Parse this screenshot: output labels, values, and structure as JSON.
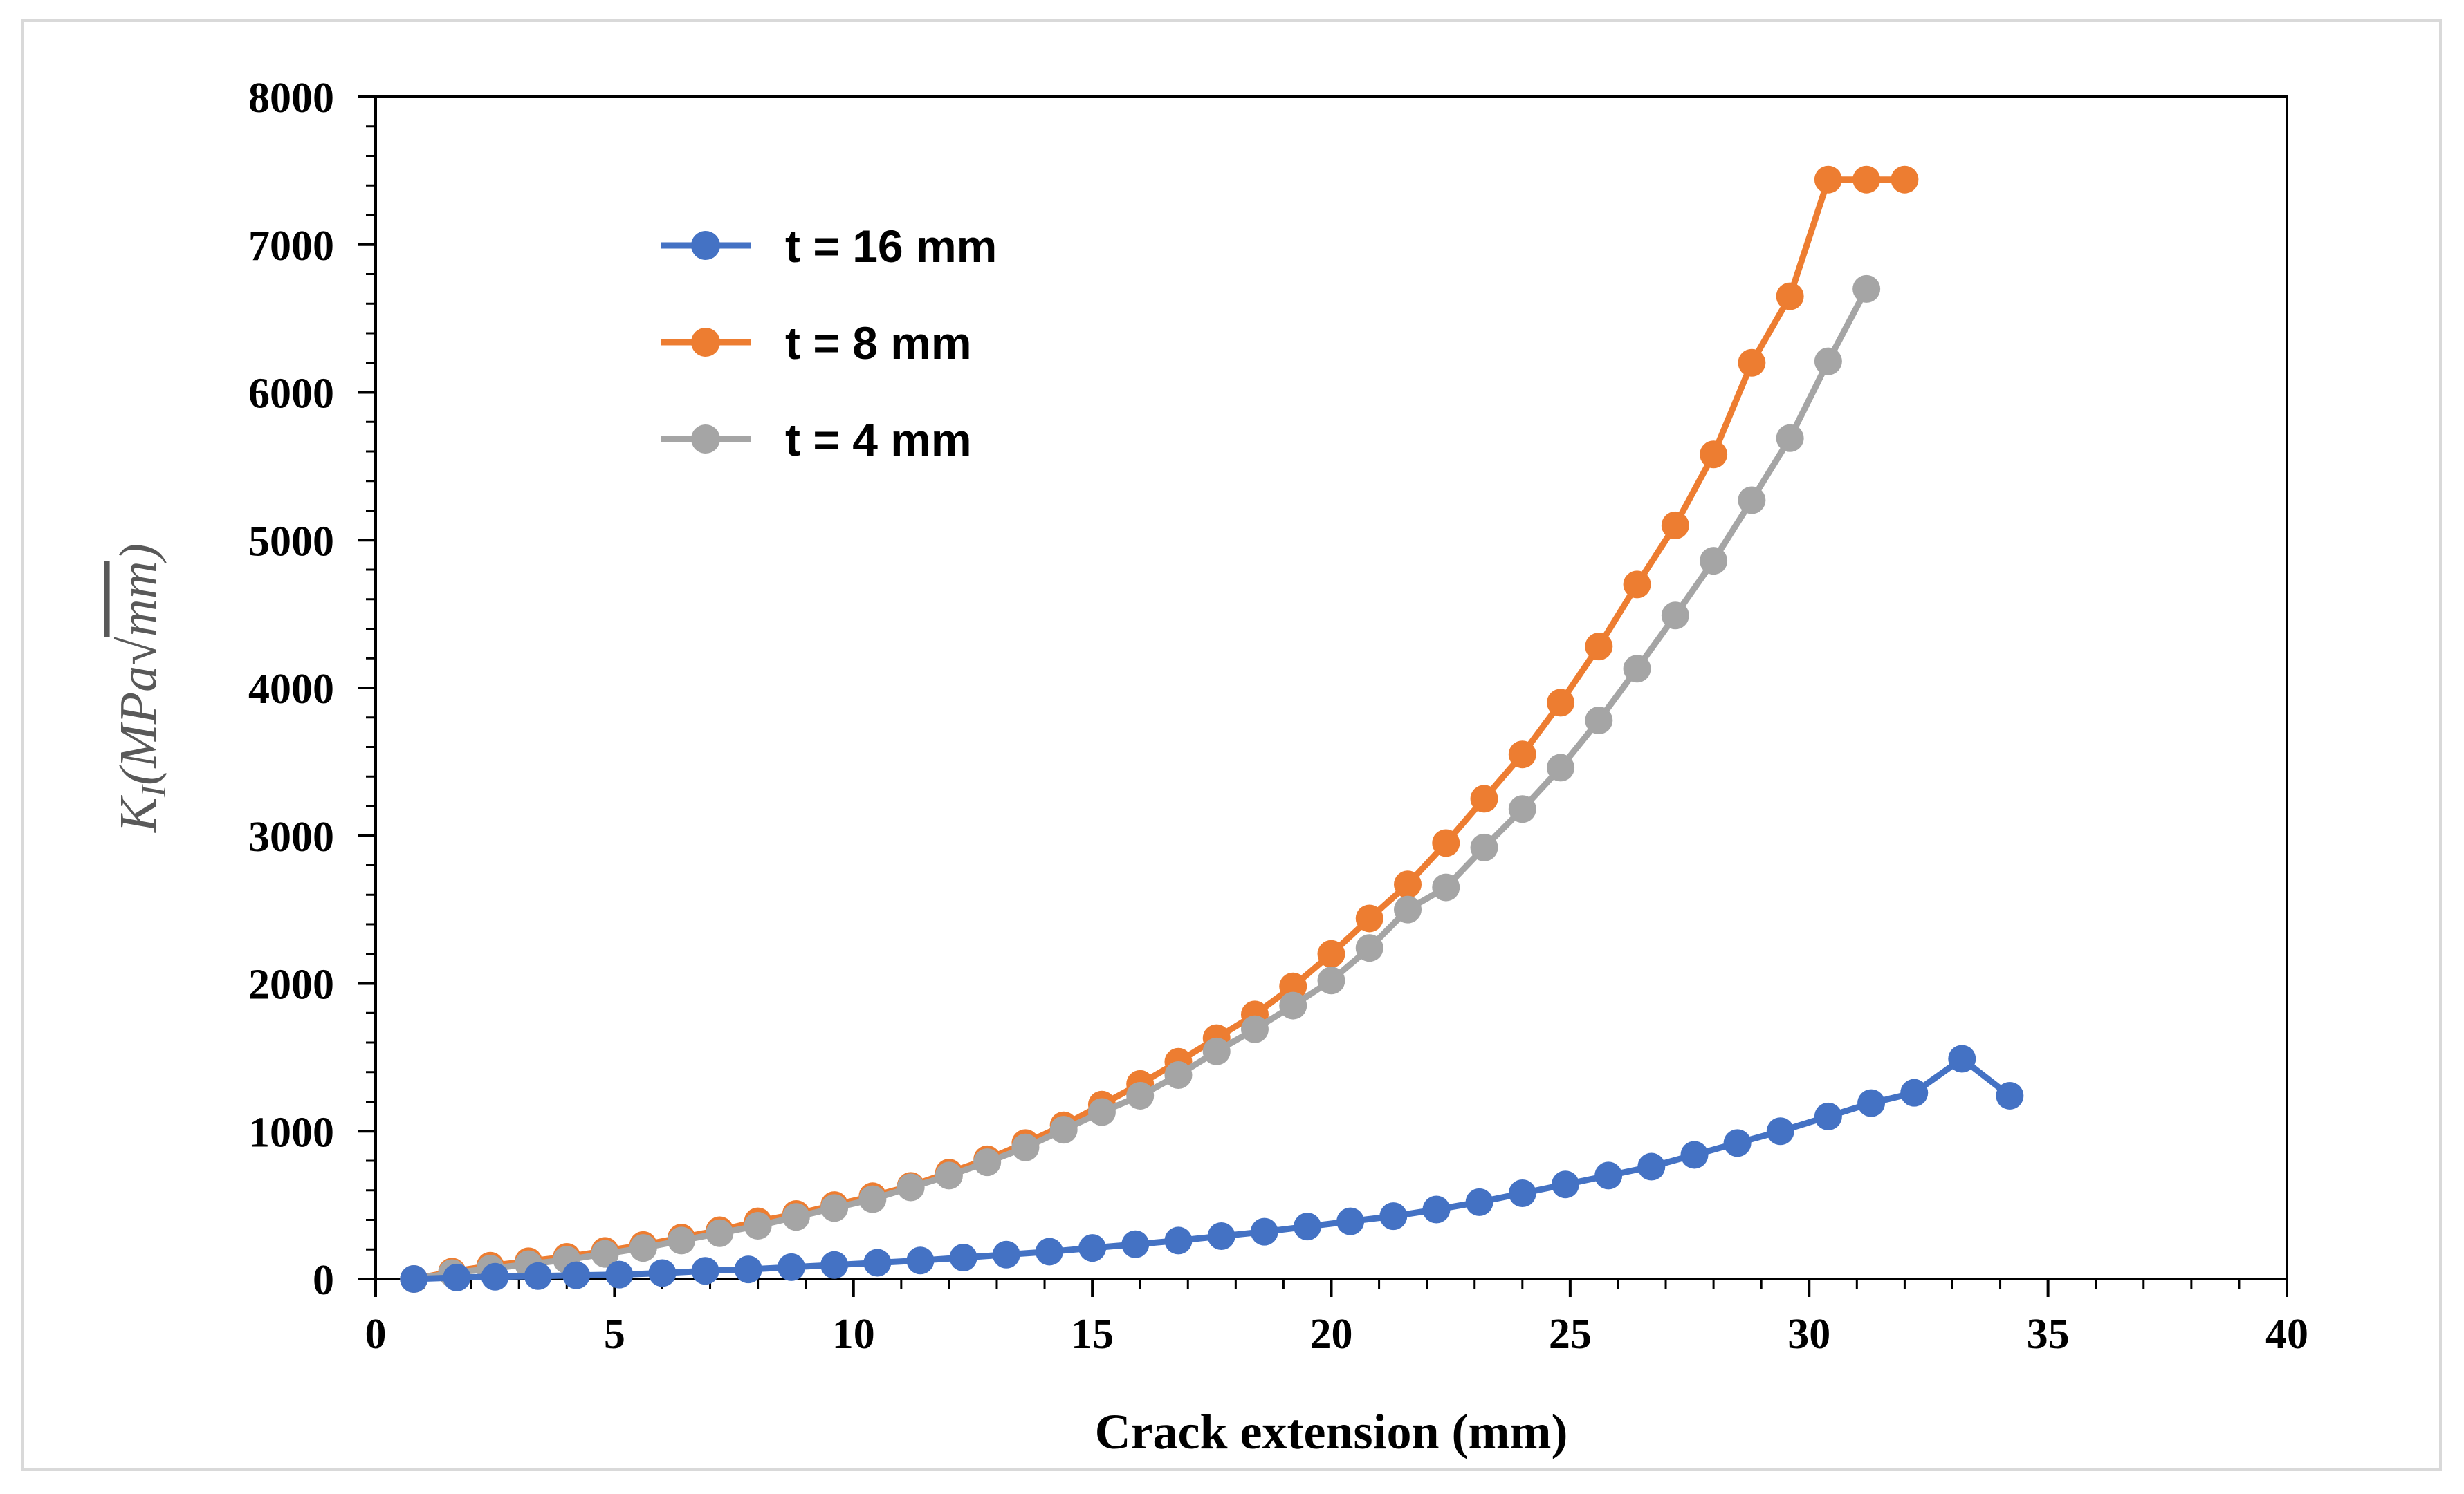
{
  "chart_data": {
    "type": "line",
    "title": "",
    "xlabel": "Crack extension (mm)",
    "ylabel": {
      "prefix": "K",
      "subscript": "I",
      "units_open": "(MPa",
      "radicand": "mm",
      "units_close": ")"
    },
    "xlim": [
      0,
      40
    ],
    "ylim": [
      0,
      8000
    ],
    "x_ticks": [
      "0",
      "5",
      "10",
      "15",
      "20",
      "25",
      "30",
      "35",
      "40"
    ],
    "y_ticks": [
      "0",
      "1000",
      "2000",
      "3000",
      "4000",
      "5000",
      "6000",
      "7000",
      "8000"
    ],
    "legend_position": "top-left",
    "series": [
      {
        "name": "t = 16 mm",
        "color": "#4472c4",
        "x": [
          0.8,
          1.7,
          2.5,
          3.4,
          4.2,
          5.1,
          6.0,
          6.9,
          7.8,
          8.7,
          9.6,
          10.5,
          11.4,
          12.3,
          13.2,
          14.1,
          15.0,
          15.9,
          16.8,
          17.7,
          18.6,
          19.5,
          20.4,
          21.3,
          22.2,
          23.1,
          24.0,
          24.9,
          25.8,
          26.7,
          27.6,
          28.5,
          29.4,
          30.4,
          31.3,
          32.2,
          33.2,
          34.2
        ],
        "y": [
          0,
          10,
          15,
          20,
          25,
          30,
          40,
          55,
          65,
          80,
          95,
          110,
          125,
          145,
          165,
          185,
          210,
          235,
          260,
          290,
          320,
          355,
          390,
          425,
          470,
          520,
          580,
          640,
          700,
          760,
          840,
          920,
          1000,
          1100,
          1190,
          1260,
          1490,
          1240
        ]
      },
      {
        "name": "t = 8 mm",
        "color": "#ed7d31",
        "x": [
          0.8,
          1.6,
          2.4,
          3.2,
          4.0,
          4.8,
          5.6,
          6.4,
          7.2,
          8.0,
          8.8,
          9.6,
          10.4,
          11.2,
          12.0,
          12.8,
          13.6,
          14.4,
          15.2,
          16.0,
          16.8,
          17.6,
          18.4,
          19.2,
          20.0,
          20.8,
          21.6,
          22.4,
          23.2,
          24.0,
          24.8,
          25.6,
          26.4,
          27.2,
          28.0,
          28.8,
          29.6,
          30.4,
          31.2,
          32.0
        ],
        "y": [
          0,
          50,
          90,
          120,
          150,
          190,
          230,
          280,
          330,
          390,
          440,
          500,
          560,
          630,
          720,
          810,
          920,
          1040,
          1180,
          1320,
          1470,
          1630,
          1790,
          1980,
          2200,
          2440,
          2670,
          2950,
          3250,
          3550,
          3900,
          4280,
          4700,
          5100,
          5580,
          6200,
          6650,
          7440,
          7440,
          7440
        ]
      },
      {
        "name": "t = 4 mm",
        "color": "#a5a5a5",
        "x": [
          0.8,
          1.6,
          2.4,
          3.2,
          4.0,
          4.8,
          5.6,
          6.4,
          7.2,
          8.0,
          8.8,
          9.6,
          10.4,
          11.2,
          12.0,
          12.8,
          13.6,
          14.4,
          15.2,
          16.0,
          16.8,
          17.6,
          18.4,
          19.2,
          20.0,
          20.8,
          21.6,
          22.4,
          23.2,
          24.0,
          24.8,
          25.6,
          26.4,
          27.2,
          28.0,
          28.8,
          29.6,
          30.4,
          31.2
        ],
        "y": [
          0,
          40,
          70,
          100,
          130,
          170,
          210,
          260,
          310,
          360,
          420,
          480,
          540,
          620,
          700,
          790,
          890,
          1010,
          1130,
          1240,
          1380,
          1540,
          1690,
          1850,
          2020,
          2240,
          2500,
          2650,
          2920,
          3180,
          3460,
          3780,
          4130,
          4490,
          4860,
          5270,
          5690,
          6210,
          6700
        ]
      }
    ]
  }
}
